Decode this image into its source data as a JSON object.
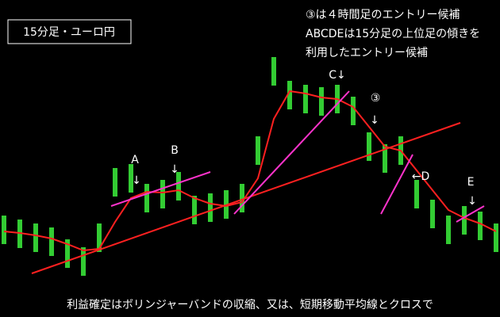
{
  "chart_data": {
    "type": "bar",
    "title": "15分足・ユーロ円",
    "notes": [
      "③は４時間足のエントリー候補",
      "ABCDEは15分足の上位足の傾きを",
      "利用したエントリー候補"
    ],
    "footer": "利益確定はボリンジャーバンドの収縮、又は、短期移動平均線とクロスで",
    "labels": {
      "a": "A",
      "b": "B",
      "c": "C↓",
      "three": "③",
      "d": "←D",
      "e": "E"
    },
    "ylim": [
      0,
      400
    ],
    "series": [
      {
        "color": "#33cc33",
        "values": [
          110,
          105,
          100,
          95,
          80,
          70,
          100,
          170,
          175,
          150,
          155,
          165,
          135,
          138,
          142,
          150,
          210,
          310,
          280,
          275,
          272,
          275,
          260,
          215,
          200,
          210,
          155,
          130,
          110,
          122,
          115,
          100
        ]
      },
      {
        "color": "#ff2020",
        "values": [
          108,
          106,
          103,
          99,
          92,
          84,
          86,
          120,
          150,
          158,
          157,
          160,
          150,
          143,
          140,
          145,
          175,
          250,
          285,
          282,
          277,
          275,
          265,
          240,
          215,
          210,
          185,
          160,
          135,
          125,
          118,
          108
        ]
      }
    ]
  }
}
